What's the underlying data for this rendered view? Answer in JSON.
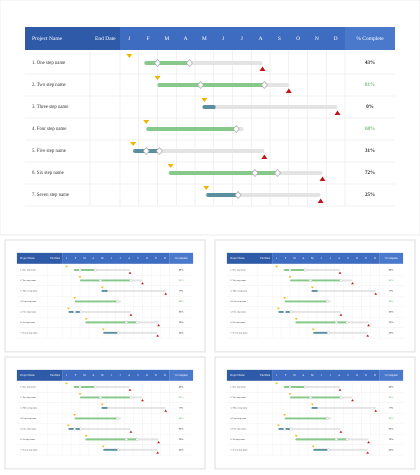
{
  "header": {
    "project_name": "Project Name",
    "end_date": "End Date",
    "months": [
      "J",
      "F",
      "M",
      "A",
      "M",
      "J",
      "J",
      "A",
      "S",
      "O",
      "N",
      "D"
    ],
    "percent_complete": "% Complete"
  },
  "rows": [
    {
      "name": "1. One step name",
      "percent": "43%",
      "percent_color": "#222222",
      "color": "#86c98a",
      "milestone": 0.5,
      "start": 1.3,
      "progress": 3.7,
      "end": 7.6,
      "diamonds": [
        2.0,
        3.7
      ],
      "deadline": 7.6
    },
    {
      "name": "2. Two step name",
      "percent": "81%",
      "percent_color": "#6dbb72",
      "color": "#86c98a",
      "milestone": 2.0,
      "start": 2.0,
      "progress": 7.7,
      "end": 9.0,
      "diamonds": [
        4.3,
        7.7
      ],
      "deadline": 9.0
    },
    {
      "name": "3. Three step name",
      "percent": "0%",
      "percent_color": "#222222",
      "color": "#5a8fa0",
      "milestone": 4.5,
      "start": 4.4,
      "progress": 5.1,
      "end": 11.6,
      "diamonds": [],
      "deadline": 11.6
    },
    {
      "name": "4. Four step name",
      "percent": "68%",
      "percent_color": "#6dbb72",
      "color": "#86c98a",
      "milestone": 1.4,
      "start": 1.4,
      "progress": 6.2,
      "end": 6.6,
      "diamonds": [
        6.2
      ],
      "deadline": null
    },
    {
      "name": "5. Five step name",
      "percent": "31%",
      "percent_color": "#222222",
      "color": "#5a8fa0",
      "milestone": 0.7,
      "start": 0.7,
      "progress": 2.1,
      "end": 7.7,
      "diamonds": [
        1.4,
        2.1
      ],
      "deadline": 7.7
    },
    {
      "name": "6. Six step name",
      "percent": "72%",
      "percent_color": "#222222",
      "color": "#86c98a",
      "milestone": 2.7,
      "start": 2.6,
      "progress": 8.4,
      "end": 10.8,
      "diamonds": [
        7.2,
        8.4
      ],
      "deadline": 10.8
    },
    {
      "name": "7. Seven step name",
      "percent": "25%",
      "percent_color": "#222222",
      "color": "#5a8fa0",
      "milestone": 4.6,
      "start": 4.6,
      "progress": 6.3,
      "end": 10.7,
      "diamonds": [
        6.3
      ],
      "deadline": 10.7
    }
  ]
}
